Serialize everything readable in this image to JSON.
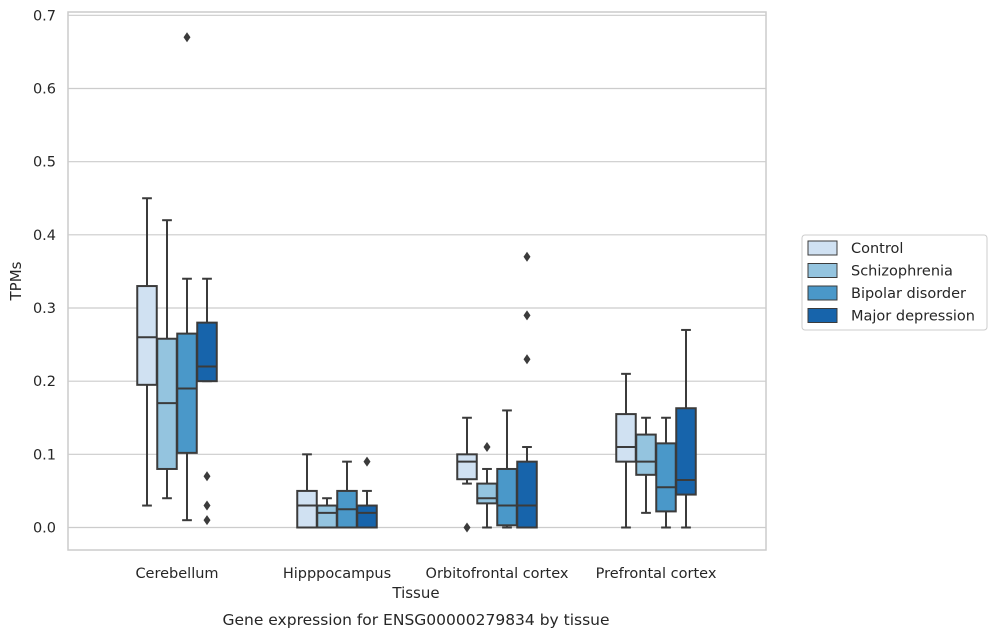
{
  "caption": "Gene expression for ENSG00000279834 by tissue",
  "chart_data": {
    "type": "box",
    "title": "",
    "xlabel": "Tissue",
    "ylabel": "TPMs",
    "ylim": [
      -0.032,
      0.705
    ],
    "yticks": [
      0.0,
      0.1,
      0.2,
      0.3,
      0.4,
      0.5,
      0.6,
      0.7
    ],
    "ytick_labels": [
      "0.0",
      "0.1",
      "0.2",
      "0.3",
      "0.4",
      "0.5",
      "0.6",
      "0.7"
    ],
    "grid": "horizontal",
    "legend_position": "right",
    "categories": [
      "Cerebellum",
      "Hipppocampus",
      "Orbitofrontal cortex",
      "Prefrontal cortex"
    ],
    "series": [
      {
        "name": "Control",
        "color": "#d0e1f2",
        "boxes": [
          {
            "whislo": 0.03,
            "q1": 0.195,
            "med": 0.26,
            "q3": 0.33,
            "whishi": 0.45,
            "fliers": []
          },
          {
            "whislo": 0.0,
            "q1": 0.0,
            "med": 0.03,
            "q3": 0.05,
            "whishi": 0.1,
            "fliers": []
          },
          {
            "whislo": 0.06,
            "q1": 0.066,
            "med": 0.09,
            "q3": 0.1,
            "whishi": 0.15,
            "fliers": [
              0.0
            ]
          },
          {
            "whislo": 0.0,
            "q1": 0.09,
            "med": 0.11,
            "q3": 0.155,
            "whishi": 0.21,
            "fliers": []
          }
        ]
      },
      {
        "name": "Schizophrenia",
        "color": "#94c4df",
        "boxes": [
          {
            "whislo": 0.04,
            "q1": 0.08,
            "med": 0.17,
            "q3": 0.258,
            "whishi": 0.42,
            "fliers": []
          },
          {
            "whislo": 0.0,
            "q1": 0.0,
            "med": 0.02,
            "q3": 0.03,
            "whishi": 0.04,
            "fliers": []
          },
          {
            "whislo": 0.0,
            "q1": 0.033,
            "med": 0.04,
            "q3": 0.06,
            "whishi": 0.08,
            "fliers": [
              0.11
            ]
          },
          {
            "whislo": 0.02,
            "q1": 0.072,
            "med": 0.09,
            "q3": 0.127,
            "whishi": 0.15,
            "fliers": []
          }
        ]
      },
      {
        "name": "Bipolar disorder",
        "color": "#4a98c9",
        "boxes": [
          {
            "whislo": 0.01,
            "q1": 0.102,
            "med": 0.19,
            "q3": 0.265,
            "whishi": 0.34,
            "fliers": [
              0.67
            ]
          },
          {
            "whislo": 0.0,
            "q1": 0.0,
            "med": 0.025,
            "q3": 0.05,
            "whishi": 0.09,
            "fliers": []
          },
          {
            "whislo": 0.0,
            "q1": 0.003,
            "med": 0.03,
            "q3": 0.08,
            "whishi": 0.16,
            "fliers": []
          },
          {
            "whislo": 0.0,
            "q1": 0.022,
            "med": 0.055,
            "q3": 0.115,
            "whishi": 0.15,
            "fliers": []
          }
        ]
      },
      {
        "name": "Major depression",
        "color": "#1764ab",
        "boxes": [
          {
            "whislo": 0.2,
            "q1": 0.2,
            "med": 0.22,
            "q3": 0.28,
            "whishi": 0.34,
            "fliers": [
              0.07,
              0.03,
              0.01
            ]
          },
          {
            "whislo": 0.0,
            "q1": 0.0,
            "med": 0.02,
            "q3": 0.03,
            "whishi": 0.05,
            "fliers": [
              0.09
            ]
          },
          {
            "whislo": 0.0,
            "q1": 0.0,
            "med": 0.03,
            "q3": 0.09,
            "whishi": 0.11,
            "fliers": [
              0.37,
              0.29,
              0.23
            ]
          },
          {
            "whislo": 0.0,
            "q1": 0.045,
            "med": 0.065,
            "q3": 0.163,
            "whishi": 0.27,
            "fliers": []
          }
        ]
      }
    ]
  }
}
